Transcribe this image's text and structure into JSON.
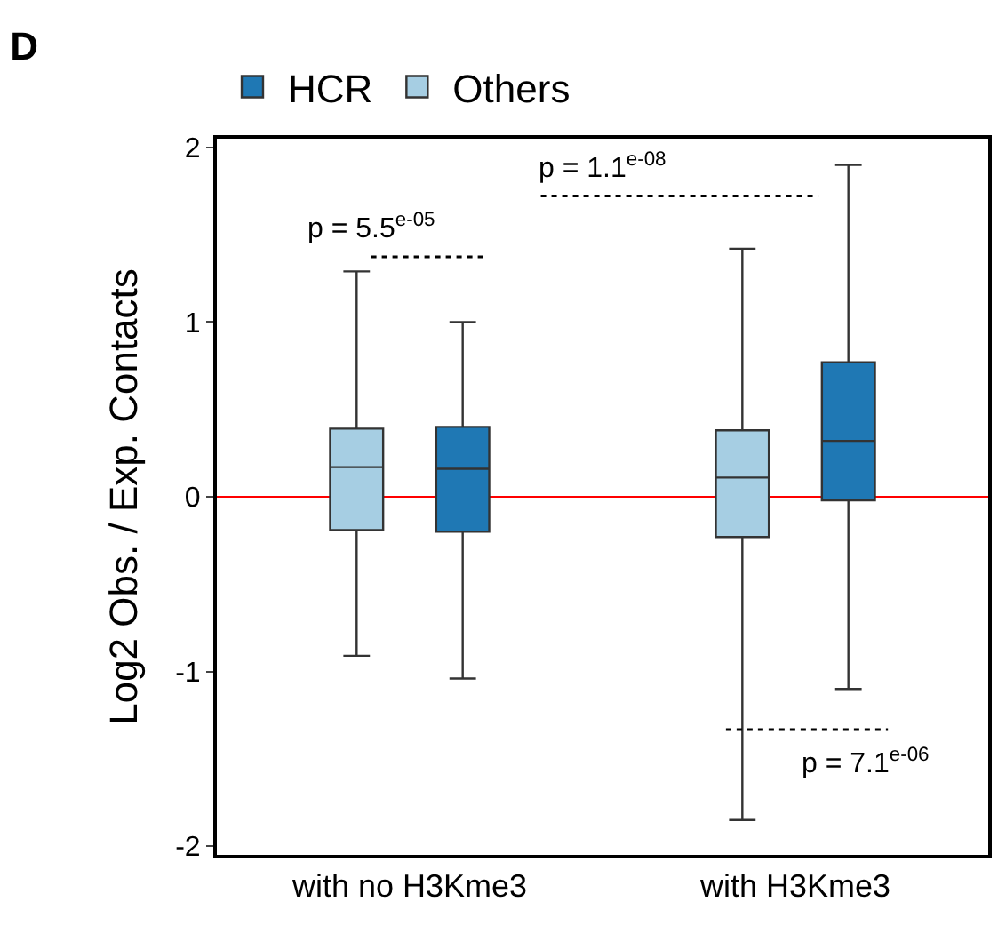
{
  "chart_data": {
    "type": "box",
    "title": "D",
    "ylabel": "Log2 Obs. / Exp. Contacts",
    "categories": [
      "with no H3Kme3",
      "with H3Kme3"
    ],
    "series": [
      {
        "name": "HCR",
        "color": "#1f78b4",
        "boxes": [
          {
            "low": -1.04,
            "q1": -0.2,
            "median": 0.16,
            "q3": 0.4,
            "high": 1.0
          },
          {
            "low": -1.1,
            "q1": -0.02,
            "median": 0.32,
            "q3": 0.77,
            "high": 1.9
          }
        ]
      },
      {
        "name": "Others",
        "color": "#a6cee3",
        "boxes": [
          {
            "low": -0.91,
            "q1": -0.19,
            "median": 0.17,
            "q3": 0.39,
            "high": 1.29
          },
          {
            "low": -1.85,
            "q1": -0.23,
            "median": 0.11,
            "q3": 0.38,
            "high": 1.42
          }
        ]
      }
    ],
    "ylim": [
      -2.05,
      2.05
    ],
    "yticks": [
      -2,
      -1,
      0,
      1,
      2
    ],
    "ref_lines": [
      {
        "axis": "y",
        "value": 0,
        "color": "#ff0000"
      }
    ],
    "annotations": [
      "p = 5.5$^{e-05}$",
      "p = 1.1$^{e-08}$",
      "p = 7.1$^{e-06}$"
    ],
    "legend": "top",
    "grid": false
  }
}
